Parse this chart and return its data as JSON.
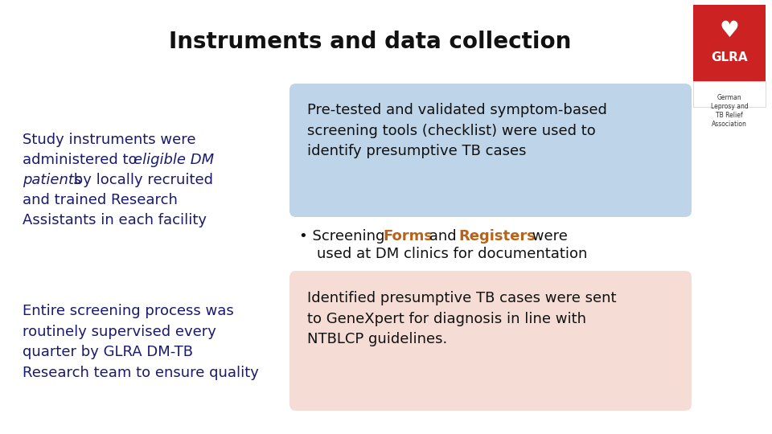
{
  "title": "Instruments and data collection",
  "title_fontsize": 20,
  "title_fontweight": "bold",
  "bg_color": "#ffffff",
  "top_box_color": "#bed4e8",
  "bottom_box_color": "#f5ddd5",
  "top_box_text": "Pre-tested and validated symptom-based\nscreening tools (checklist) were used to\nidentify presumptive TB cases",
  "bullet_line1a": "• Screening ",
  "bullet_forms": "Forms",
  "bullet_and": " and ",
  "bullet_registers": "Registers",
  "bullet_line1b": " were",
  "bullet_line2": "   used at DM clinics for documentation",
  "left_top_normal1": "Study instruments were",
  "left_top_normal2": "administered to ",
  "left_top_italic1": "eligible DM",
  "left_top_italic2": "patients",
  "left_top_normal3": " by locally recruited",
  "left_top_normal4": "and trained Research",
  "left_top_normal5": "Assistants in each facility",
  "left_bottom_text": "Entire screening process was\nroutinely supervised every\nquarter by GLRA DM-TB\nResearch team to ensure quality",
  "bottom_box_text": "Identified presumptive TB cases were sent\nto GeneXpert for diagnosis in line with\nNTBLCP guidelines.",
  "forms_color": "#b8621a",
  "registers_color": "#b8621a",
  "left_text_color": "#1a1a6e",
  "box_text_color": "#111111",
  "text_fontsize": 13,
  "logo_red": "#cc2222",
  "glra_sub": "German\nLeprosy and\nTB Relief\nAssociation"
}
